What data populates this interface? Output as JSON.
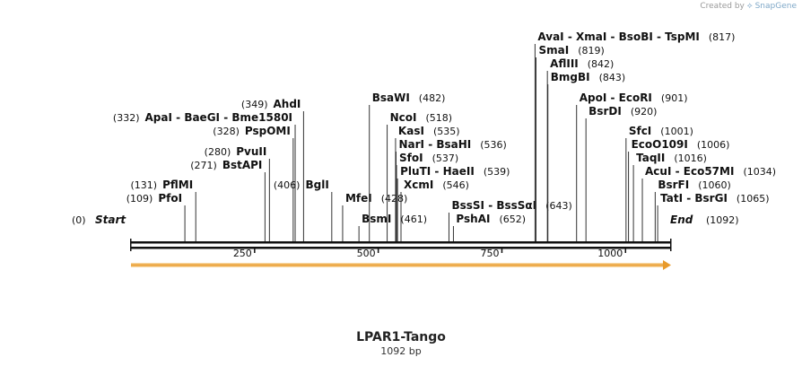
{
  "credit": {
    "prefix": "Created by",
    "brand": "SnapGene"
  },
  "map": {
    "title": "LPAR1-Tango",
    "length_label": "1092 bp",
    "length": 1092,
    "start": {
      "label": "Start",
      "pos": "(0)"
    },
    "end": {
      "label": "End",
      "pos": "(1092)"
    },
    "ticks": [
      "250",
      "500",
      "750",
      "1000"
    ],
    "feature_color": "#f2a93b"
  },
  "sites": [
    {
      "pos": "(109)",
      "names": [
        "PfoI"
      ]
    },
    {
      "pos": "(131)",
      "names": [
        "PflMI"
      ]
    },
    {
      "pos": "(271)",
      "names": [
        "BstAPI"
      ]
    },
    {
      "pos": "(280)",
      "names": [
        "PvuII"
      ]
    },
    {
      "pos": "(328)",
      "names": [
        "PspOMI"
      ]
    },
    {
      "pos": "(332)",
      "names": [
        "ApaI",
        "BaeGI",
        "Bme1580I"
      ]
    },
    {
      "pos": "(349)",
      "names": [
        "AhdI"
      ]
    },
    {
      "pos": "(406)",
      "names": [
        "BglI"
      ]
    },
    {
      "pos": "(428)",
      "names": [
        "MfeI"
      ]
    },
    {
      "pos": "(461)",
      "names": [
        "BsmI"
      ]
    },
    {
      "pos": "(482)",
      "names": [
        "BsaWI"
      ]
    },
    {
      "pos": "(518)",
      "names": [
        "NcoI"
      ]
    },
    {
      "pos": "(535)",
      "names": [
        "KasI"
      ]
    },
    {
      "pos": "(536)",
      "names": [
        "NarI",
        "BsaHI"
      ]
    },
    {
      "pos": "(537)",
      "names": [
        "SfoI"
      ]
    },
    {
      "pos": "(539)",
      "names": [
        "PluTI",
        "HaeII"
      ]
    },
    {
      "pos": "(546)",
      "names": [
        "XcmI"
      ]
    },
    {
      "pos": "(643)",
      "names": [
        "BssSI",
        "BssSαI"
      ]
    },
    {
      "pos": "(652)",
      "names": [
        "PshAI"
      ]
    },
    {
      "pos": "(817)",
      "names": [
        "AvaI",
        "XmaI",
        "BsoBI",
        "TspMI"
      ]
    },
    {
      "pos": "(819)",
      "names": [
        "SmaI"
      ]
    },
    {
      "pos": "(842)",
      "names": [
        "AflIII"
      ]
    },
    {
      "pos": "(843)",
      "names": [
        "BmgBI"
      ]
    },
    {
      "pos": "(901)",
      "names": [
        "ApoI",
        "EcoRI"
      ]
    },
    {
      "pos": "(920)",
      "names": [
        "BsrDI"
      ]
    },
    {
      "pos": "(1001)",
      "names": [
        "SfcI"
      ]
    },
    {
      "pos": "(1006)",
      "names": [
        "EcoO109I"
      ]
    },
    {
      "pos": "(1016)",
      "names": [
        "TaqII"
      ]
    },
    {
      "pos": "(1034)",
      "names": [
        "AcuI",
        "Eco57MI"
      ]
    },
    {
      "pos": "(1060)",
      "names": [
        "BsrFI"
      ]
    },
    {
      "pos": "(1065)",
      "names": [
        "TatI",
        "BsrGI"
      ]
    }
  ]
}
